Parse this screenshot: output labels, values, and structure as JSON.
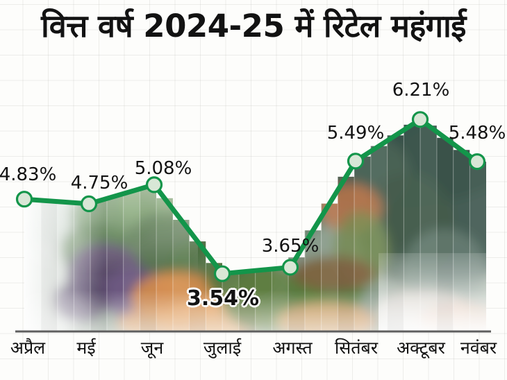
{
  "title": "वित्त वर्ष 2024-25 में रिटेल महंगाई",
  "chart_data": {
    "type": "line",
    "title": "वित्त वर्ष 2024-25 में रिटेल महंगाई",
    "categories": [
      "अप्रैल",
      "मई",
      "जून",
      "जुलाई",
      "अगस्त",
      "सितंबर",
      "अक्टूबर",
      "नवंबर"
    ],
    "values": [
      4.83,
      4.75,
      5.08,
      3.54,
      3.65,
      5.49,
      6.21,
      5.48
    ],
    "point_labels": [
      "4.83%",
      "4.75%",
      "5.08%",
      "3.54%",
      "3.65%",
      "5.49%",
      "6.21%",
      "5.48%"
    ],
    "bold_label_index": 3,
    "unit": "%",
    "ylim": [
      2.5,
      6.6
    ],
    "xlabel": "",
    "ylabel": "",
    "grid": true,
    "legend_position": "none",
    "marker": "circle",
    "area_fill": "vegetable-photo-strips"
  },
  "colors": {
    "line": "#13954A",
    "marker_fill": "#D8E7D6",
    "marker_stroke": "#13954A",
    "label_text": "#121212",
    "bold_label_outline": "#FFFFFF",
    "axis_line": "#5F5F5F",
    "title_text": "#121212",
    "background": "#FDFDFB"
  }
}
